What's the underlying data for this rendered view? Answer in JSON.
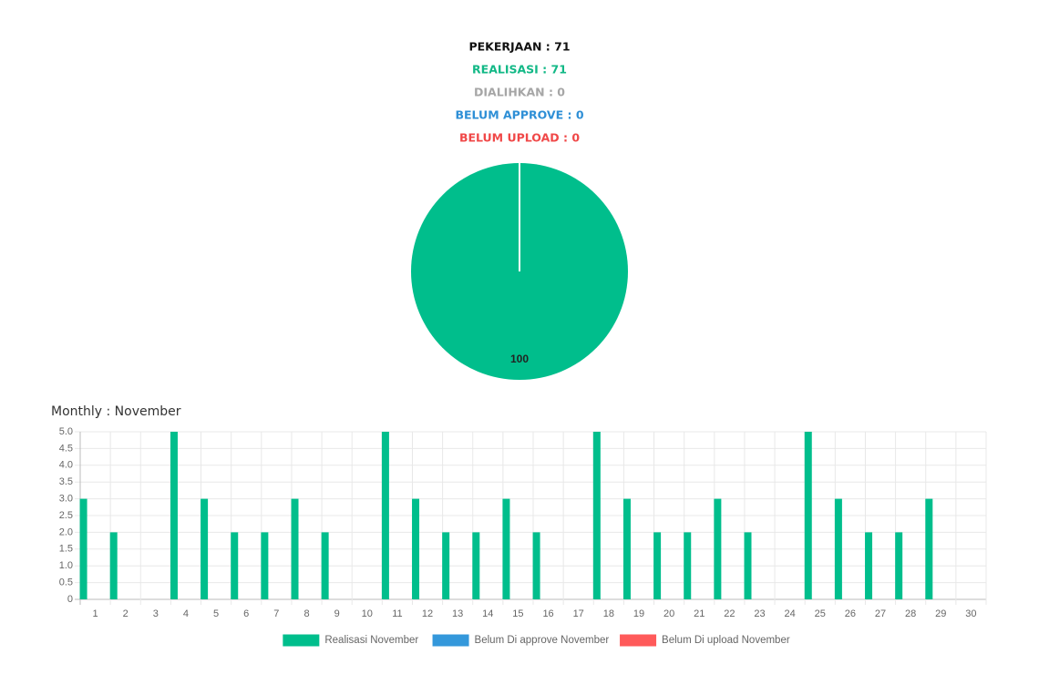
{
  "chart_data": [
    {
      "type": "pie",
      "header_lines": [
        {
          "text": "PEKERJAAN : 71",
          "color": "#111111"
        },
        {
          "text": "REALISASI : 71",
          "color": "#12b886"
        },
        {
          "text": "DIALIHKAN : 0",
          "color": "#a6a6a6"
        },
        {
          "text": "BELUM APPROVE : 0",
          "color": "#2e8fd6"
        },
        {
          "text": "BELUM UPLOAD : 0",
          "color": "#f04848"
        }
      ],
      "values": [
        100
      ],
      "colors": [
        "#00be8c"
      ]
    },
    {
      "type": "bar",
      "title": "Monthly : November",
      "categories": [
        "1",
        "2",
        "3",
        "4",
        "5",
        "6",
        "7",
        "8",
        "9",
        "10",
        "11",
        "12",
        "13",
        "14",
        "15",
        "16",
        "17",
        "18",
        "19",
        "20",
        "21",
        "22",
        "23",
        "24",
        "25",
        "26",
        "27",
        "28",
        "29",
        "30"
      ],
      "series": [
        {
          "name": "Realisasi November",
          "color": "#00be8c",
          "values": [
            3,
            2,
            0,
            5,
            3,
            2,
            2,
            3,
            2,
            0,
            5,
            3,
            2,
            2,
            3,
            2,
            0,
            5,
            3,
            2,
            2,
            3,
            2,
            0,
            5,
            3,
            2,
            2,
            3,
            0
          ]
        },
        {
          "name": "Belum Di approve November",
          "color": "#3498db",
          "values": [
            0,
            0,
            0,
            0,
            0,
            0,
            0,
            0,
            0,
            0,
            0,
            0,
            0,
            0,
            0,
            0,
            0,
            0,
            0,
            0,
            0,
            0,
            0,
            0,
            0,
            0,
            0,
            0,
            0,
            0
          ]
        },
        {
          "name": "Belum Di upload November",
          "color": "#ff5a5a",
          "values": [
            0,
            0,
            0,
            0,
            0,
            0,
            0,
            0,
            0,
            0,
            0,
            0,
            0,
            0,
            0,
            0,
            0,
            0,
            0,
            0,
            0,
            0,
            0,
            0,
            0,
            0,
            0,
            0,
            0,
            0
          ]
        }
      ],
      "ylim": [
        0,
        5
      ],
      "yticks": [
        0,
        0.5,
        {
          "value": 1,
          "label": "1.0"
        },
        1.5,
        {
          "value": 2,
          "label": "2.0"
        },
        2.5,
        {
          "value": 3,
          "label": "3.0"
        },
        3.5,
        {
          "value": 4,
          "label": "4.0"
        },
        4.5,
        {
          "value": 5,
          "label": "5.0"
        }
      ],
      "grid": true,
      "legend": "bottom"
    }
  ]
}
